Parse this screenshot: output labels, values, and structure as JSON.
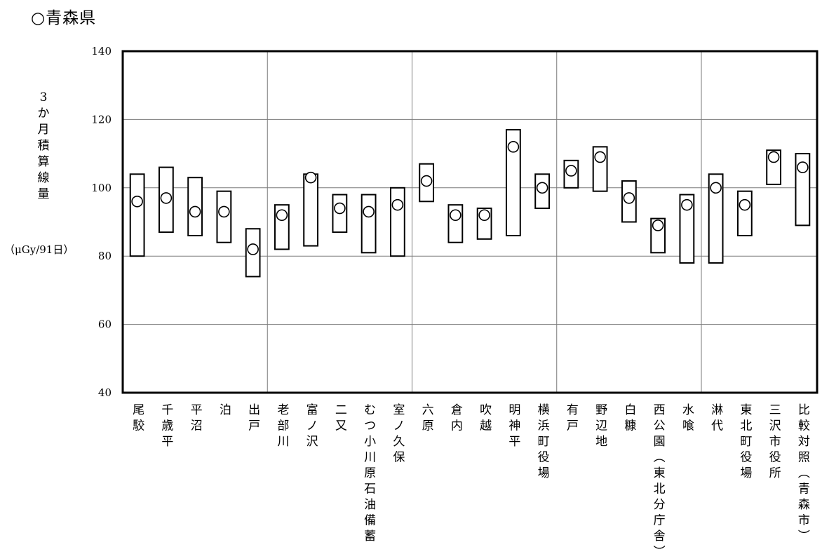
{
  "title": "○青森県",
  "ylabel_chars": [
    "3",
    "か",
    "月",
    "積",
    "算",
    "線",
    "量"
  ],
  "ylabel_unit": "（μGy/91日）",
  "chart_data": {
    "type": "range",
    "title": "",
    "ylim": [
      40,
      140
    ],
    "yticks": [
      40,
      60,
      80,
      100,
      120,
      140
    ],
    "grid": true,
    "group_separators_after_index": [
      4,
      9,
      14,
      19
    ],
    "categories": [
      "尾駮",
      "千歳平",
      "平沼",
      "泊",
      "出戸",
      "老部川",
      "富ノ沢",
      "二又",
      "むつ小川原石油備蓄",
      "室ノ久保",
      "六原",
      "倉内",
      "吹越",
      "明神平",
      "横浜町役場",
      "有戸",
      "野辺地",
      "白糠",
      "西公園(東北分庁舎)",
      "水喰",
      "淋代",
      "東北町役場",
      "三沢市役所",
      "比較対照(青森市)"
    ],
    "series": [
      {
        "name": "",
        "kind": "range",
        "low": [
          80,
          87,
          86,
          84,
          74,
          82,
          83,
          87,
          81,
          80,
          96,
          84,
          85,
          86,
          94,
          100,
          99,
          90,
          81,
          78,
          78,
          86,
          101,
          89
        ],
        "high": [
          104,
          106,
          103,
          99,
          88,
          95,
          104,
          98,
          98,
          100,
          107,
          95,
          94,
          117,
          104,
          108,
          112,
          102,
          91,
          98,
          104,
          99,
          111,
          110
        ]
      },
      {
        "name": "",
        "kind": "point",
        "values": [
          96,
          97,
          93,
          93,
          82,
          92,
          103,
          94,
          93,
          95,
          102,
          92,
          92,
          112,
          100,
          105,
          109,
          97,
          89,
          95,
          100,
          95,
          109,
          106
        ]
      }
    ]
  }
}
